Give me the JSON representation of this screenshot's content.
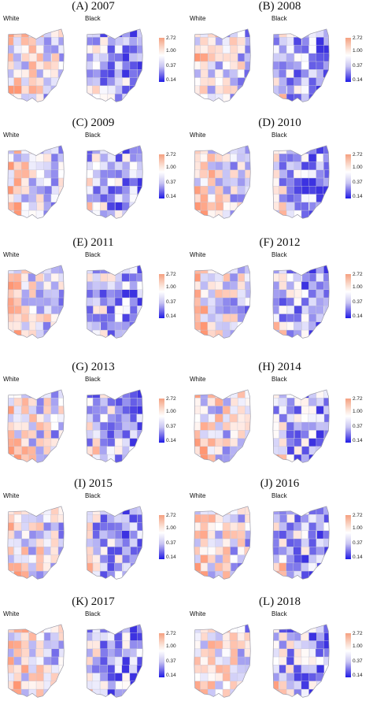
{
  "groups": {
    "white": "White",
    "black": "Black"
  },
  "legend": {
    "ticks": [
      "2.72",
      "1.00",
      "0.37",
      "0.14"
    ],
    "colors": {
      "high": "#f5a080",
      "mid": "#ffffff",
      "low": "#1f1be6"
    }
  },
  "panels": [
    {
      "title": "(A) 2007"
    },
    {
      "title": "(B) 2008"
    },
    {
      "title": "(C) 2009"
    },
    {
      "title": "(D) 2010"
    },
    {
      "title": "(E) 2011"
    },
    {
      "title": "(F) 2012"
    },
    {
      "title": "(G) 2013"
    },
    {
      "title": "(H) 2014"
    },
    {
      "title": "(I) 2015"
    },
    {
      "title": "(J) 2016"
    },
    {
      "title": "(K) 2017"
    },
    {
      "title": "(L) 2018"
    }
  ]
}
